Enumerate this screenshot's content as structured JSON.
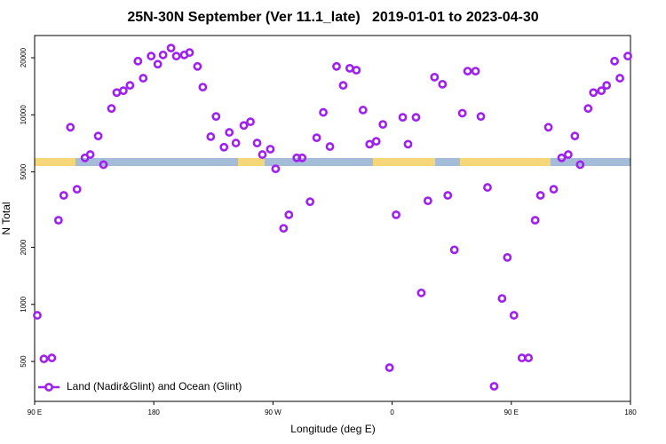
{
  "chart_data": {
    "type": "scatter",
    "title": "25N-30N September (Ver 11.1_late)   2019-01-01 to 2023-04-30",
    "x_label": "Longitude (deg E)",
    "y_label": "N Total",
    "log_y": true,
    "legend_position": "bottom-left",
    "grid": false,
    "xlim": [
      90,
      540
    ],
    "xticks": [
      {
        "value": 90,
        "label": "90 E"
      },
      180,
      {
        "value": 270,
        "label": "90 W"
      },
      {
        "value": 360,
        "label": "0"
      },
      {
        "value": 450,
        "label": "90 E"
      },
      {
        "value": 540,
        "label": "180"
      }
    ],
    "ylim": [
      308,
      26200
    ],
    "yticks": [
      500,
      1000,
      2000,
      5000,
      10000,
      20000
    ],
    "series": [
      {
        "name": "Land (Nadir&Glint) and Ocean (Glint)",
        "color": "#a020f0",
        "x": [
          92,
          97,
          103,
          108,
          112,
          117,
          122,
          128,
          132,
          138,
          142,
          148,
          152,
          157,
          162,
          168,
          172,
          178,
          183,
          187,
          193,
          197,
          203,
          207,
          213,
          217,
          223,
          227,
          233,
          237,
          242,
          248,
          253,
          258,
          262,
          268,
          272,
          278,
          282,
          288,
          292,
          298,
          303,
          308,
          313,
          318,
          323,
          328,
          333,
          338,
          343,
          348,
          353,
          358,
          363,
          368,
          372,
          378,
          382,
          387,
          392,
          398,
          402,
          407,
          413,
          417,
          423,
          427,
          432,
          437,
          443,
          447,
          452,
          458,
          463,
          468,
          472,
          478,
          482,
          488,
          493,
          498,
          502,
          508,
          512,
          518,
          522,
          528,
          532,
          538
        ],
        "values": [
          876,
          516,
          522,
          2780,
          3760,
          8600,
          4050,
          5930,
          6170,
          7730,
          5460,
          10800,
          13100,
          13400,
          14300,
          19200,
          15600,
          20400,
          18500,
          20700,
          22500,
          20400,
          20700,
          21300,
          18000,
          14000,
          7670,
          9800,
          6750,
          8080,
          7100,
          8790,
          9190,
          7100,
          6170,
          6590,
          5190,
          2520,
          2970,
          5930,
          5930,
          3480,
          7570,
          10300,
          6800,
          18000,
          14300,
          17600,
          17200,
          10600,
          7000,
          7250,
          8900,
          464,
          2970,
          9700,
          7000,
          9700,
          1150,
          3520,
          15800,
          14500,
          3760,
          1940,
          10200,
          17000,
          17000,
          9800,
          4140,
          370,
          1075,
          1770,
          876,
          522,
          522,
          2780,
          3760,
          8600,
          4050,
          5930,
          6170,
          7730,
          5460,
          10800,
          13100,
          13400,
          14300,
          19200,
          15600,
          20400
        ]
      }
    ]
  }
}
